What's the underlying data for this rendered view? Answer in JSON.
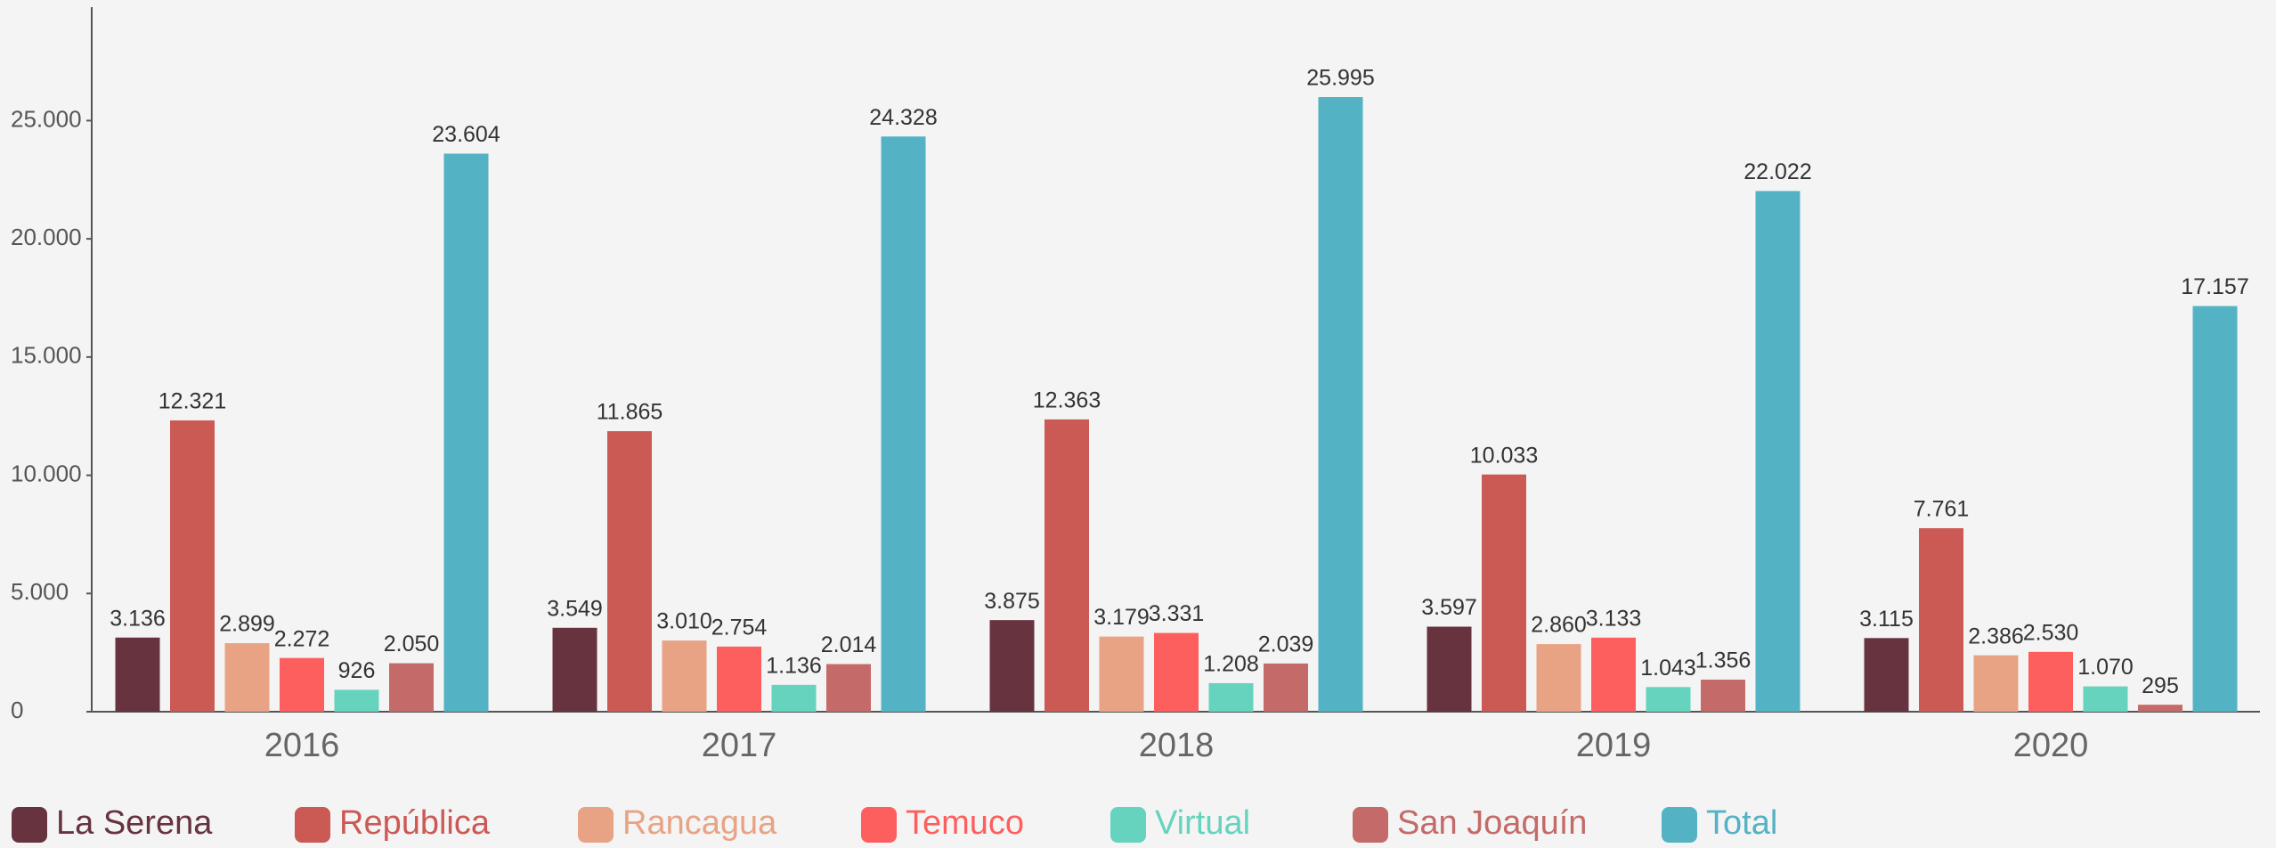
{
  "chart_data": {
    "type": "bar",
    "categories": [
      "2016",
      "2017",
      "2018",
      "2019",
      "2020"
    ],
    "series": [
      {
        "name": "La Serena",
        "color": "#66333f",
        "values": [
          3136,
          3549,
          3875,
          3597,
          3115
        ],
        "value_labels": [
          "3.136",
          "3.549",
          "3.875",
          "3.597",
          "3.115"
        ]
      },
      {
        "name": "República",
        "color": "#cb5954",
        "values": [
          12321,
          11865,
          12363,
          10033,
          7761
        ],
        "value_labels": [
          "12.321",
          "11.865",
          "12.363",
          "10.033",
          "7.761"
        ]
      },
      {
        "name": "Rancagua",
        "color": "#e8a385",
        "values": [
          2899,
          3010,
          3179,
          2860,
          2386
        ],
        "value_labels": [
          "2.899",
          "3.010",
          "3.179",
          "2.860",
          "2.386"
        ]
      },
      {
        "name": "Temuco",
        "color": "#fd5f5e",
        "values": [
          2272,
          2754,
          3331,
          3133,
          2530
        ],
        "value_labels": [
          "2.272",
          "2.754",
          "3.331",
          "3.133",
          "2.530"
        ]
      },
      {
        "name": "Virtual",
        "color": "#65d3be",
        "values": [
          926,
          1136,
          1208,
          1043,
          1070
        ],
        "value_labels": [
          "926",
          "1.136",
          "1.208",
          "1.043",
          "1.070"
        ]
      },
      {
        "name": "San Joaquín",
        "color": "#c46a68",
        "values": [
          2050,
          2014,
          2039,
          1356,
          295
        ],
        "value_labels": [
          "2.050",
          "2.014",
          "2.039",
          "1.356",
          "295"
        ]
      },
      {
        "name": "Total",
        "color": "#54b2c5",
        "values": [
          23604,
          24328,
          25995,
          22022,
          17157
        ],
        "value_labels": [
          "23.604",
          "24.328",
          "25.995",
          "22.022",
          "17.157"
        ]
      }
    ],
    "ylim": [
      0,
      29800
    ],
    "yticks": [
      0,
      {
        "value": 5000,
        "label": "5.000"
      },
      {
        "value": 10000,
        "label": "10.000"
      },
      {
        "value": 15000,
        "label": "15.000"
      },
      {
        "value": 20000,
        "label": "20.000"
      },
      {
        "value": 25000,
        "label": "25.000"
      }
    ],
    "grid": false,
    "legend": "bottom"
  }
}
